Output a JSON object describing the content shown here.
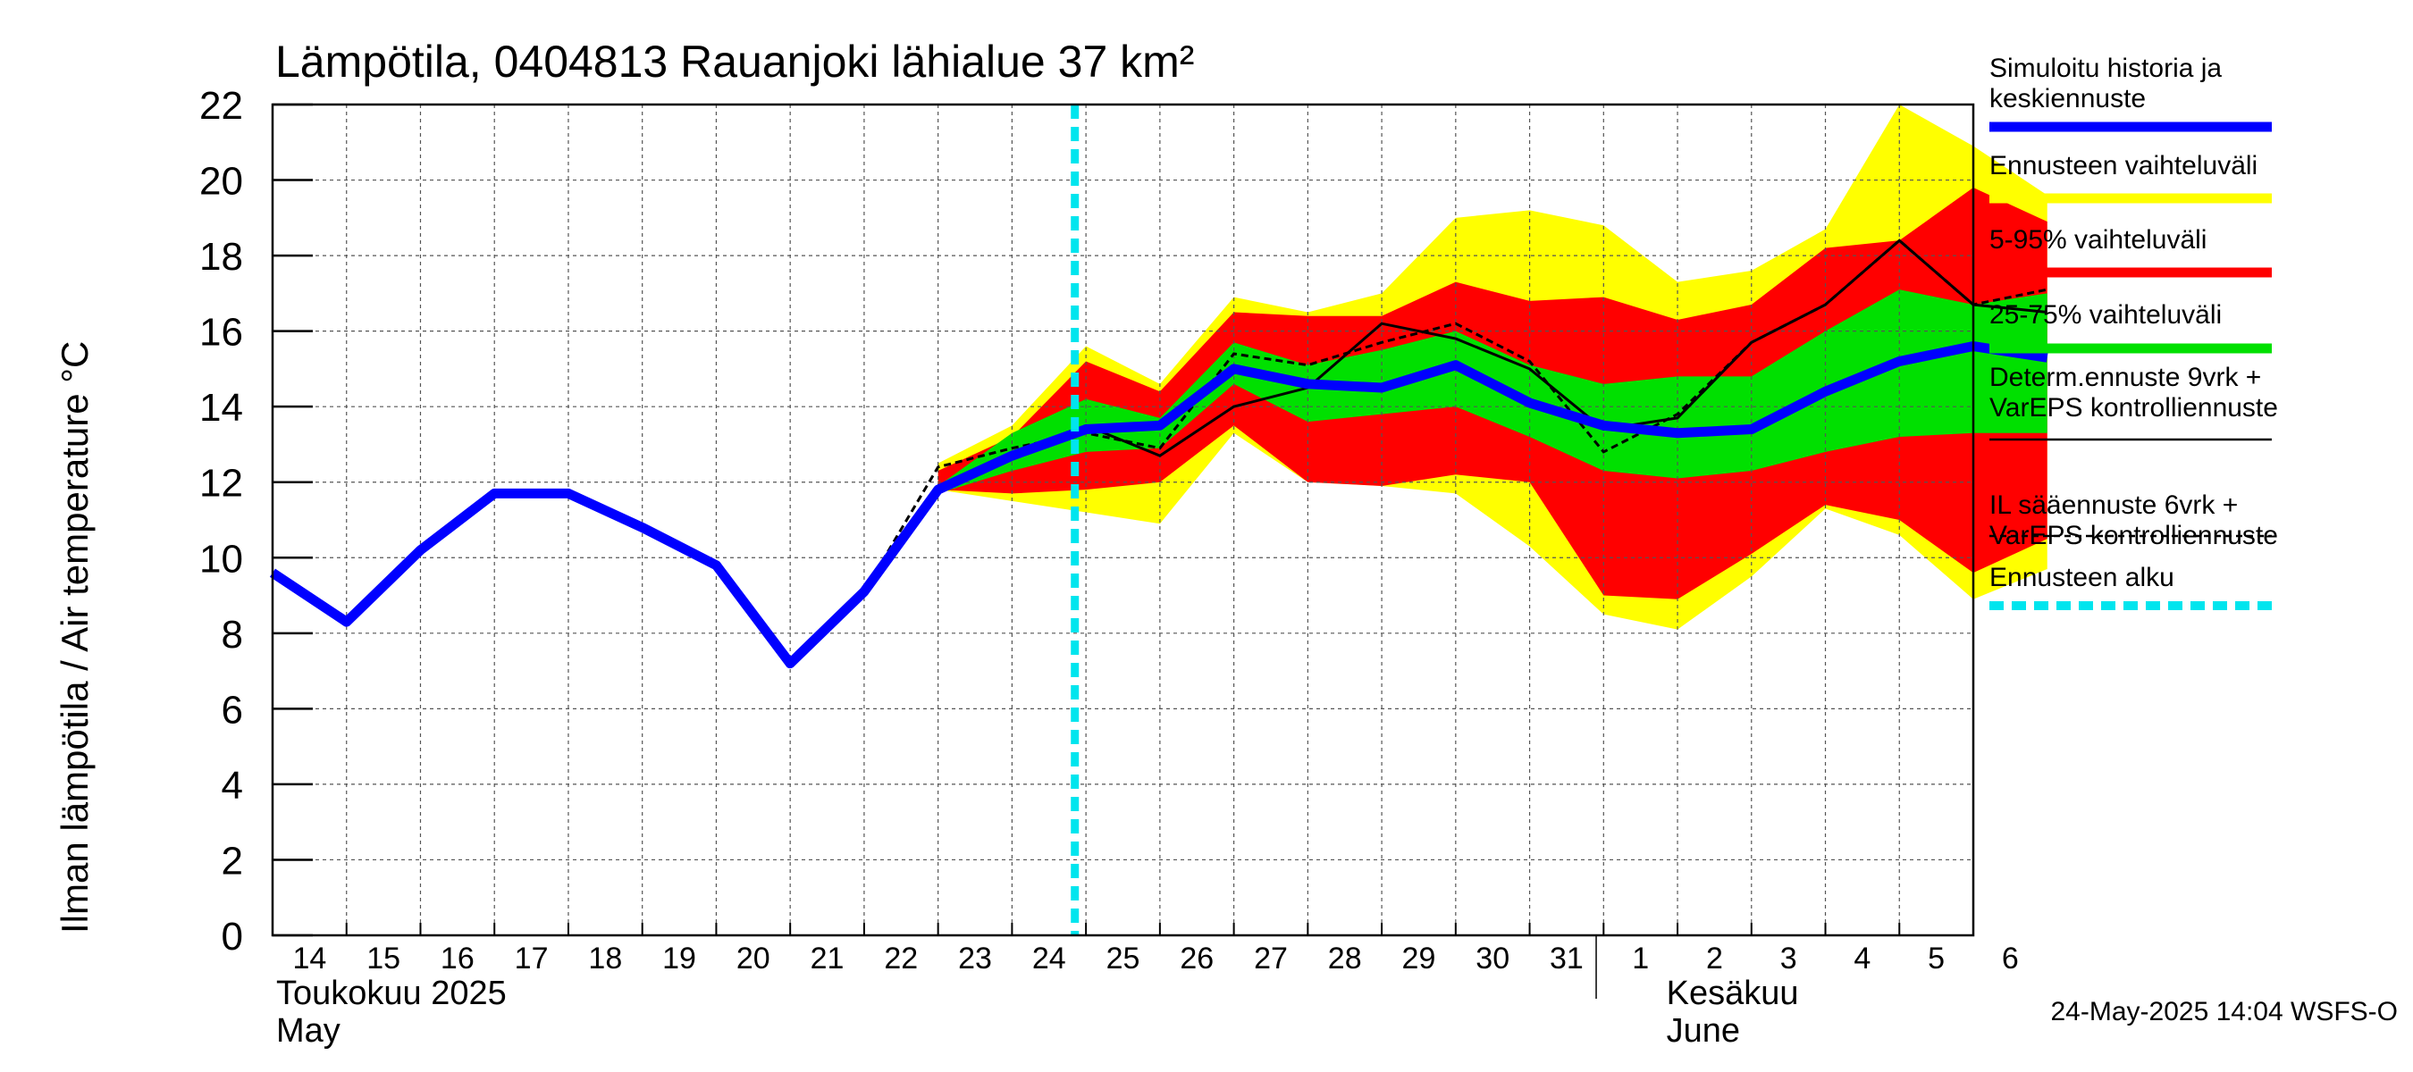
{
  "chart_data": {
    "type": "area",
    "title": "Lämpötila, 0404813 Rauanjoki lähialue 37 km²",
    "ylabel": "Ilman lämpötila / Air temperature   °C",
    "xlabel": "",
    "ylim": [
      0,
      22
    ],
    "yticks": [
      0,
      2,
      4,
      6,
      8,
      10,
      12,
      14,
      16,
      18,
      20,
      22
    ],
    "grid": true,
    "legend_placement": "right",
    "xlim": [
      "2025-05-14",
      "2025-06-06"
    ],
    "x_tick_labels": [
      "14",
      "15",
      "16",
      "17",
      "18",
      "19",
      "20",
      "21",
      "22",
      "23",
      "24",
      "25",
      "26",
      "27",
      "28",
      "29",
      "30",
      "31",
      "1",
      "2",
      "3",
      "4",
      "5",
      "6"
    ],
    "month_labels": [
      {
        "fi": "Toukokuu  2025",
        "en": "May"
      },
      {
        "fi": "Kesäkuu",
        "en": "June"
      }
    ],
    "forecast_start": "2025-05-24",
    "timestamp": "24-May-2025 14:04 WSFS-O",
    "legend": [
      {
        "label": "Simuloitu historia ja\nkeskiennuste",
        "color": "#0000ff"
      },
      {
        "label": "Ennusteen vaihteluväli",
        "color": "#ffff00"
      },
      {
        "label": "5-95% vaihteluväli",
        "color": "#ff0000"
      },
      {
        "label": "25-75% vaihteluväli",
        "color": "#00e000"
      },
      {
        "label": "Determ.ennuste 9vrk +\nVarEPS kontrolliennuste",
        "color": "#000000"
      },
      {
        "label": "IL sääennuste 6vrk  +\n  VarEPS kontrolliennuste",
        "color": "#000000"
      },
      {
        "label": "Ennusteen alku",
        "color": "#00e5ee"
      }
    ],
    "series": [
      {
        "key": "history",
        "x": [
          0,
          1,
          2,
          3,
          4,
          5,
          6,
          7,
          8,
          9,
          10,
          11,
          12,
          13,
          14,
          15,
          16,
          17,
          18,
          19,
          20,
          21,
          22,
          23,
          24
        ],
        "values": [
          9.6,
          8.3,
          10.2,
          11.7,
          11.7,
          10.8,
          9.8,
          7.2,
          9.1,
          11.8,
          12.7,
          13.4,
          13.5,
          15.0,
          14.6,
          14.5,
          15.1,
          14.1,
          13.5,
          13.3,
          13.4,
          14.4,
          15.2,
          15.6,
          15.3
        ]
      },
      {
        "key": "range_full",
        "x": [
          9,
          10,
          11,
          12,
          13,
          14,
          15,
          16,
          17,
          18,
          19,
          20,
          21,
          22,
          23,
          24
        ],
        "upper": [
          12.5,
          13.5,
          15.6,
          14.6,
          16.9,
          16.5,
          17.0,
          19.0,
          19.2,
          18.8,
          17.3,
          17.6,
          18.7,
          22.0,
          20.9,
          19.6
        ],
        "lower": [
          11.8,
          11.5,
          11.2,
          10.9,
          13.3,
          12.0,
          11.9,
          11.7,
          10.3,
          8.5,
          8.1,
          9.5,
          11.3,
          10.6,
          8.9,
          9.7
        ]
      },
      {
        "key": "range_5_95",
        "x": [
          9,
          10,
          11,
          12,
          13,
          14,
          15,
          16,
          17,
          18,
          19,
          20,
          21,
          22,
          23,
          24
        ],
        "upper": [
          12.3,
          13.2,
          15.2,
          14.4,
          16.5,
          16.4,
          16.4,
          17.3,
          16.8,
          16.9,
          16.3,
          16.7,
          18.2,
          18.4,
          19.8,
          18.9
        ],
        "lower": [
          11.8,
          11.7,
          11.8,
          12.0,
          13.5,
          12.0,
          11.9,
          12.2,
          12.0,
          9.0,
          8.9,
          10.1,
          11.4,
          11.0,
          9.6,
          10.5
        ]
      },
      {
        "key": "range_25_75",
        "x": [
          9,
          10,
          11,
          12,
          13,
          14,
          15,
          16,
          17,
          18,
          19,
          20,
          21,
          22,
          23,
          24
        ],
        "upper": [
          11.9,
          13.3,
          14.2,
          13.7,
          15.7,
          15.1,
          15.5,
          16.0,
          15.1,
          14.6,
          14.8,
          14.8,
          16.0,
          17.1,
          16.7,
          17.0
        ],
        "lower": [
          11.7,
          12.3,
          12.8,
          12.9,
          14.6,
          13.6,
          13.8,
          14.0,
          13.2,
          12.3,
          12.1,
          12.3,
          12.8,
          13.2,
          13.3,
          13.3
        ]
      },
      {
        "key": "deterministic",
        "x": [
          9,
          10,
          11,
          12,
          13,
          14,
          15,
          16,
          17,
          18,
          19,
          20,
          21,
          22,
          23,
          24
        ],
        "values": [
          11.8,
          12.7,
          13.5,
          12.7,
          14.0,
          14.5,
          16.2,
          15.8,
          15.0,
          13.4,
          13.7,
          15.7,
          16.7,
          18.4,
          16.7,
          16.5
        ]
      },
      {
        "key": "il_forecast",
        "x": [
          8,
          9,
          10,
          11,
          12,
          13,
          14,
          15,
          16,
          17,
          18,
          19,
          20,
          21,
          22,
          23,
          24
        ],
        "values": [
          9.1,
          12.4,
          12.9,
          13.3,
          12.9,
          15.4,
          15.1,
          15.7,
          16.2,
          15.2,
          12.8,
          13.8,
          15.7,
          16.7,
          18.4,
          16.7,
          17.1
        ]
      }
    ]
  }
}
